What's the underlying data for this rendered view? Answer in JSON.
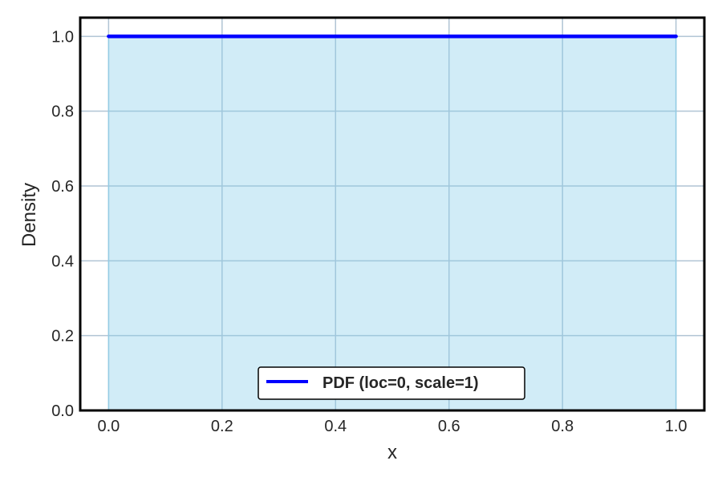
{
  "chart_data": {
    "type": "area",
    "title": "",
    "xlabel": "x",
    "ylabel": "Density",
    "xlim": [
      -0.05,
      1.05
    ],
    "ylim": [
      0.0,
      1.05
    ],
    "xticks": [
      0.0,
      0.2,
      0.4,
      0.6,
      0.8,
      1.0
    ],
    "yticks": [
      0.0,
      0.2,
      0.4,
      0.6,
      0.8,
      1.0
    ],
    "xtick_labels": [
      "0.0",
      "0.2",
      "0.4",
      "0.6",
      "0.8",
      "1.0"
    ],
    "ytick_labels": [
      "0.0",
      "0.2",
      "0.4",
      "0.6",
      "0.8",
      "1.0"
    ],
    "grid": true,
    "legend_position": "bottom-center",
    "series": [
      {
        "name": "PDF (loc=0, scale=1)",
        "x": [
          0.0,
          0.2,
          0.4,
          0.6,
          0.8,
          1.0
        ],
        "y": [
          1.0,
          1.0,
          1.0,
          1.0,
          1.0,
          1.0
        ],
        "color": "#0000ff",
        "fill": true,
        "fill_color": "#87ceeb"
      }
    ]
  },
  "colors": {
    "line": "#0000ff",
    "fill": "#87ceeb",
    "grid": "#b0c4d4",
    "frame": "#000000"
  }
}
